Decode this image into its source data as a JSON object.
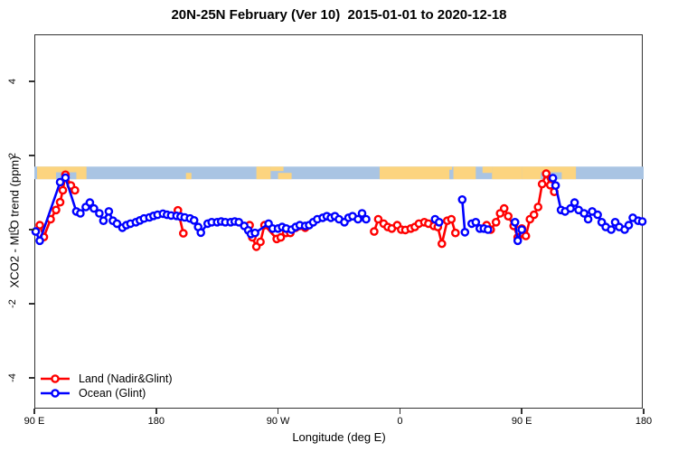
{
  "title": "20N-25N February (Ver 10)  2015-01-01 to 2020-12-18",
  "axes": {
    "x": {
      "label": "Longitude (deg E)",
      "range": [
        90,
        540
      ],
      "ticks": [
        {
          "lon": 90,
          "label": "90 E"
        },
        {
          "lon": 180,
          "label": "180"
        },
        {
          "lon": 270,
          "label": "90 W"
        },
        {
          "lon": 360,
          "label": "0"
        },
        {
          "lon": 450,
          "label": "90 E"
        },
        {
          "lon": 540,
          "label": "180"
        }
      ]
    },
    "y": {
      "label": "XCO2 - MLO trend (ppm)",
      "ticks": [
        {
          "v": 4,
          "label": "4"
        },
        {
          "v": 2,
          "label": "2"
        },
        {
          "v": 0,
          "label": "0"
        },
        {
          "v": -2,
          "label": "-2"
        },
        {
          "v": -4,
          "label": "-4"
        }
      ]
    }
  },
  "colors": {
    "land_series": "#ff0000",
    "ocean_series": "#0000ff",
    "map_ocean": "#a9c4e3",
    "map_land": "#fcd47f",
    "axis": "#333333"
  },
  "map_band": {
    "top_ppm": 1.7,
    "bottom_ppm": 1.36,
    "patches": [
      {
        "type": "land",
        "lon": [
          92,
          128.5
        ],
        "y": [
          0,
          1
        ]
      },
      {
        "type": "ocean",
        "lon": [
          106,
          121
        ],
        "y": [
          0.45,
          1
        ]
      },
      {
        "type": "land",
        "lon": [
          202,
          206
        ],
        "y": [
          0.5,
          1
        ]
      },
      {
        "type": "land",
        "lon": [
          254,
          264.5
        ],
        "y": [
          0,
          1
        ]
      },
      {
        "type": "land",
        "lon": [
          264.5,
          274
        ],
        "y": [
          0,
          0.35
        ]
      },
      {
        "type": "land",
        "lon": [
          270,
          280
        ],
        "y": [
          0.5,
          1
        ]
      },
      {
        "type": "land",
        "lon": [
          345,
          398.5
        ],
        "y": [
          0,
          1
        ]
      },
      {
        "type": "ocean",
        "lon": [
          396.5,
          399.5
        ],
        "y": [
          0.25,
          1
        ]
      },
      {
        "type": "land",
        "lon": [
          399.5,
          416
        ],
        "y": [
          0,
          1
        ]
      },
      {
        "type": "land",
        "lon": [
          421,
          428
        ],
        "y": [
          0,
          0.5
        ]
      },
      {
        "type": "land",
        "lon": [
          428,
          450
        ],
        "y": [
          0,
          1
        ]
      },
      {
        "type": "land",
        "lon": [
          450,
          490
        ],
        "y": [
          0,
          1
        ]
      },
      {
        "type": "ocean",
        "lon": [
          464,
          479.5
        ],
        "y": [
          0.45,
          1
        ]
      }
    ]
  },
  "legend": [
    {
      "label": "Land (Nadir&Glint)",
      "color": "#ff0000"
    },
    {
      "label": "Ocean (Glint)",
      "color": "#0000ff"
    }
  ],
  "chart_data": {
    "type": "line",
    "title": "20N-25N February (Ver 10)  2015-01-01 to 2020-12-18",
    "xlabel": "Longitude (deg E)",
    "ylabel": "XCO2 - MLO trend (ppm)",
    "xlim": [
      90,
      540
    ],
    "ylim": [
      -5.2,
      5.3
    ],
    "grid": false,
    "legend_position": "bottom-left",
    "series": [
      {
        "name": "Land (Nadir&Glint)",
        "color": "#ff0000",
        "segments": [
          [
            [
              94,
              0.12
            ],
            [
              97,
              -0.2
            ],
            [
              102,
              0.28
            ],
            [
              106,
              0.53
            ],
            [
              109,
              0.74
            ],
            [
              111,
              1.06
            ],
            [
              113,
              1.48
            ],
            [
              117,
              1.19
            ],
            [
              120,
              1.06
            ]
          ],
          [
            [
              196,
              0.52
            ],
            [
              200,
              -0.1
            ]
          ],
          [
            [
              249,
              0.12
            ],
            [
              251,
              -0.21
            ],
            [
              254,
              -0.46
            ],
            [
              257,
              -0.33
            ],
            [
              260,
              0.12
            ],
            [
              269,
              -0.25
            ],
            [
              272,
              -0.21
            ],
            [
              276,
              -0.09
            ],
            [
              279,
              -0.09
            ],
            [
              283,
              0.05
            ],
            [
              286,
              0.1
            ],
            [
              290,
              0.05
            ]
          ],
          [
            [
              341,
              -0.05
            ],
            [
              344,
              0.28
            ],
            [
              348,
              0.16
            ],
            [
              351,
              0.07
            ],
            [
              354,
              0.03
            ],
            [
              358,
              0.12
            ],
            [
              361,
              0.0
            ],
            [
              364,
              -0.01
            ],
            [
              368,
              0.03
            ],
            [
              371,
              0.07
            ],
            [
              374,
              0.16
            ],
            [
              378,
              0.2
            ],
            [
              381,
              0.16
            ],
            [
              385,
              0.1
            ],
            [
              388,
              0.07
            ],
            [
              391,
              -0.38
            ],
            [
              395,
              0.24
            ],
            [
              398,
              0.28
            ],
            [
              401,
              -0.09
            ]
          ],
          [
            [
              424,
              0.12
            ],
            [
              427,
              0.0
            ],
            [
              431,
              0.2
            ],
            [
              434,
              0.44
            ],
            [
              437,
              0.57
            ],
            [
              440,
              0.36
            ],
            [
              444,
              0.1
            ],
            [
              447,
              -0.21
            ],
            [
              450,
              0.03
            ],
            [
              453,
              -0.17
            ],
            [
              456,
              0.28
            ],
            [
              459,
              0.4
            ],
            [
              462,
              0.61
            ],
            [
              465,
              1.23
            ],
            [
              468,
              1.51
            ],
            [
              471,
              1.2
            ],
            [
              474,
              1.02
            ]
          ]
        ]
      },
      {
        "name": "Ocean (Glint)",
        "color": "#0000ff",
        "segments": [
          [
            [
              91,
              -0.05
            ],
            [
              94,
              -0.3
            ],
            [
              109,
              1.28
            ],
            [
              113,
              1.4
            ],
            [
              121,
              0.49
            ],
            [
              124,
              0.44
            ],
            [
              128,
              0.61
            ],
            [
              131,
              0.73
            ],
            [
              134,
              0.57
            ],
            [
              138,
              0.44
            ],
            [
              141,
              0.24
            ],
            [
              145,
              0.49
            ],
            [
              148,
              0.24
            ],
            [
              151,
              0.16
            ],
            [
              155,
              0.05
            ],
            [
              158,
              0.12
            ],
            [
              161,
              0.16
            ],
            [
              165,
              0.2
            ],
            [
              168,
              0.25
            ],
            [
              171,
              0.3
            ],
            [
              175,
              0.33
            ],
            [
              178,
              0.37
            ],
            [
              181,
              0.4
            ],
            [
              185,
              0.43
            ],
            [
              188,
              0.4
            ],
            [
              191,
              0.38
            ],
            [
              195,
              0.37
            ],
            [
              198,
              0.35
            ],
            [
              201,
              0.33
            ],
            [
              205,
              0.3
            ],
            [
              208,
              0.25
            ],
            [
              211,
              0.07
            ],
            [
              213,
              -0.08
            ],
            [
              218,
              0.16
            ],
            [
              221,
              0.2
            ],
            [
              225,
              0.2
            ],
            [
              228,
              0.22
            ],
            [
              231,
              0.2
            ],
            [
              235,
              0.2
            ],
            [
              238,
              0.22
            ],
            [
              241,
              0.2
            ],
            [
              245,
              0.1
            ],
            [
              248,
              -0.02
            ],
            [
              250,
              -0.12
            ],
            [
              253,
              -0.09
            ],
            [
              263,
              0.16
            ],
            [
              266,
              0.03
            ],
            [
              270,
              0.03
            ],
            [
              273,
              0.07
            ],
            [
              276,
              0.03
            ],
            [
              280,
              0.0
            ],
            [
              283,
              0.07
            ],
            [
              286,
              0.12
            ],
            [
              290,
              0.1
            ],
            [
              293,
              0.12
            ],
            [
              296,
              0.2
            ],
            [
              299,
              0.28
            ],
            [
              303,
              0.32
            ],
            [
              306,
              0.36
            ],
            [
              309,
              0.32
            ],
            [
              312,
              0.36
            ],
            [
              315,
              0.28
            ],
            [
              319,
              0.2
            ],
            [
              322,
              0.32
            ],
            [
              325,
              0.36
            ],
            [
              329,
              0.28
            ],
            [
              332,
              0.44
            ],
            [
              335,
              0.28
            ]
          ],
          [
            [
              386,
              0.28
            ],
            [
              389,
              0.2
            ]
          ],
          [
            [
              406,
              0.81
            ],
            [
              408,
              -0.07
            ]
          ],
          [
            [
              413,
              0.16
            ],
            [
              416,
              0.2
            ],
            [
              419,
              0.03
            ],
            [
              422,
              0.03
            ],
            [
              425,
              0.0
            ]
          ],
          [
            [
              445,
              0.2
            ],
            [
              447,
              -0.3
            ],
            [
              450,
              0.0
            ]
          ],
          [
            [
              473,
              1.39
            ],
            [
              475,
              1.19
            ],
            [
              479,
              0.53
            ],
            [
              482,
              0.49
            ],
            [
              486,
              0.57
            ],
            [
              489,
              0.73
            ],
            [
              492,
              0.53
            ],
            [
              496,
              0.44
            ],
            [
              499,
              0.28
            ],
            [
              502,
              0.49
            ],
            [
              506,
              0.4
            ],
            [
              509,
              0.2
            ],
            [
              512,
              0.07
            ],
            [
              516,
              0.0
            ],
            [
              519,
              0.2
            ],
            [
              522,
              0.07
            ],
            [
              526,
              0.0
            ],
            [
              529,
              0.12
            ],
            [
              532,
              0.32
            ],
            [
              536,
              0.24
            ],
            [
              539,
              0.22
            ]
          ]
        ]
      }
    ]
  }
}
